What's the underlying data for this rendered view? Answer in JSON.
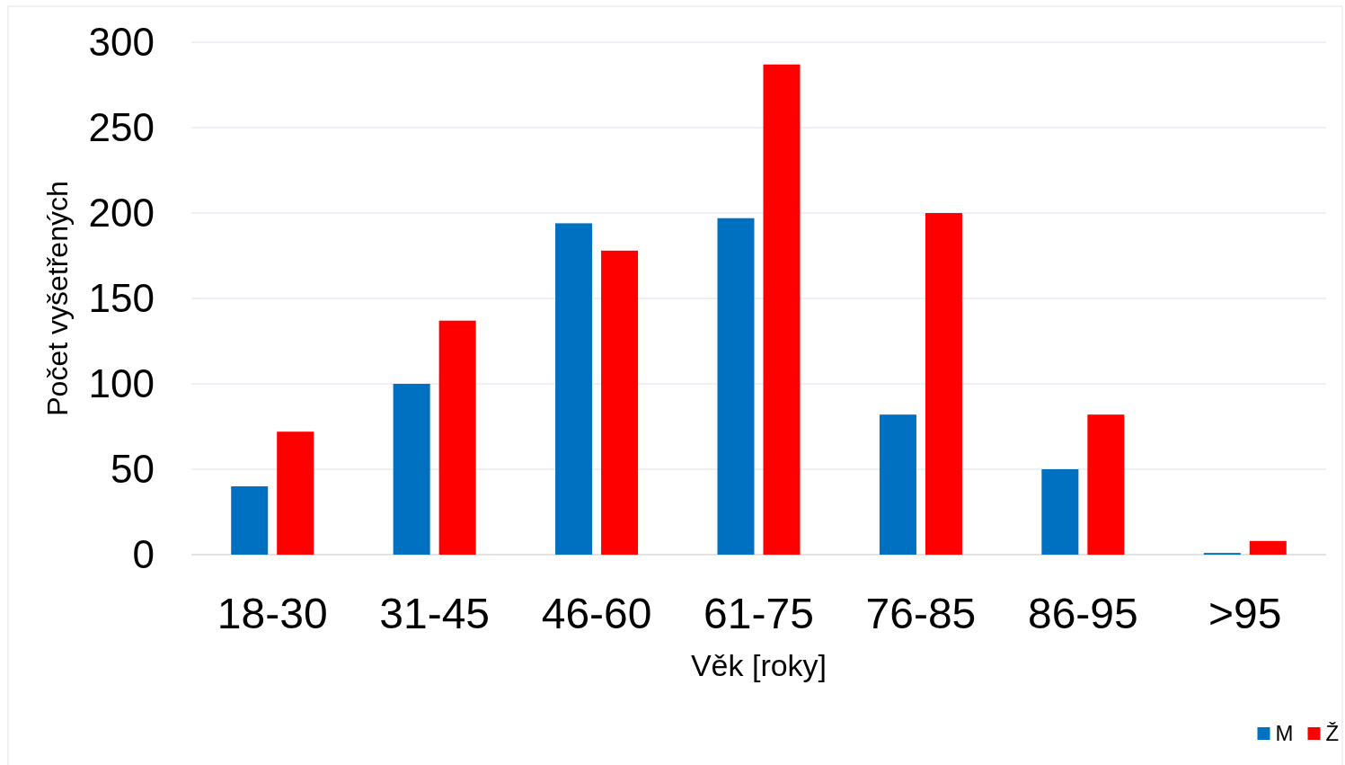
{
  "chart_data": {
    "type": "bar",
    "xlabel": "Věk [roky]",
    "ylabel": "Počet vyšetřených",
    "categories": [
      "18-30",
      "31-45",
      "46-60",
      "61-75",
      "76-85",
      "86-95",
      ">95"
    ],
    "series": [
      {
        "name": "M",
        "color": "#0070c0",
        "values": [
          40,
          100,
          194,
          197,
          82,
          50,
          1
        ]
      },
      {
        "name": "Ž",
        "color": "#ff0000",
        "values": [
          72,
          137,
          178,
          287,
          200,
          82,
          8
        ]
      }
    ],
    "ylim": [
      0,
      300
    ],
    "yticks": [
      0,
      50,
      100,
      150,
      200,
      250,
      300
    ],
    "grid": "y",
    "legend": "bottom"
  }
}
